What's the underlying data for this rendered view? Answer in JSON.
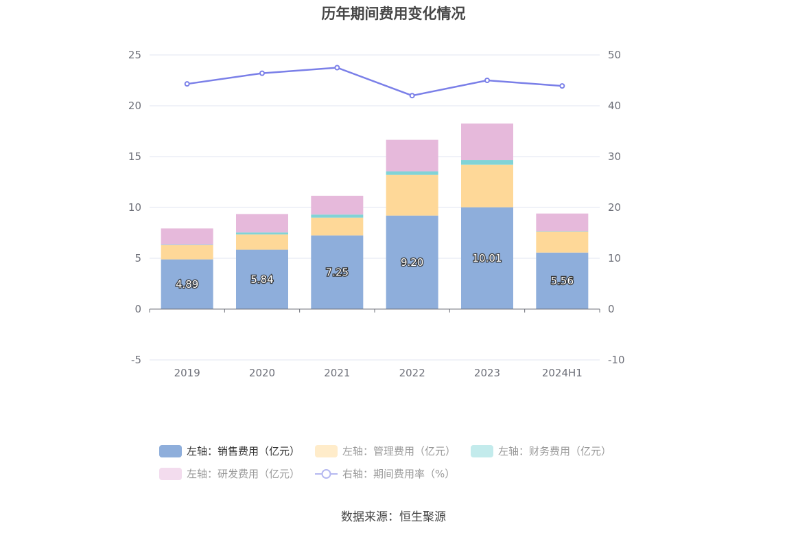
{
  "chart_data": {
    "type": "bar",
    "title": "历年期间费用变化情况",
    "categories": [
      "2019",
      "2020",
      "2021",
      "2022",
      "2023",
      "2024H1"
    ],
    "stacked": true,
    "left_axis": {
      "min": -5,
      "max": 25,
      "ticks": [
        -5,
        0,
        5,
        10,
        15,
        20,
        25
      ]
    },
    "right_axis": {
      "min": -10,
      "max": 50,
      "ticks": [
        -10,
        0,
        10,
        20,
        30,
        40,
        50
      ]
    },
    "grid": true,
    "legend_position": "bottom",
    "series": [
      {
        "name": "左轴：销售费用（亿元）",
        "axis": "left",
        "color": "#8eaedb",
        "values": [
          4.89,
          5.84,
          7.25,
          9.2,
          10.01,
          5.56
        ],
        "labels": [
          "4.89",
          "5.84",
          "7.25",
          "9.20",
          "10.01",
          "5.56"
        ]
      },
      {
        "name": "左轴：管理费用（亿元）",
        "axis": "left",
        "color": "#fed898",
        "values": [
          1.4,
          1.5,
          1.75,
          4.0,
          4.2,
          2.05
        ]
      },
      {
        "name": "左轴：财务费用（亿元）",
        "axis": "left",
        "color": "#81d3d6",
        "values": [
          0.05,
          0.2,
          0.3,
          0.35,
          0.45,
          0.05
        ]
      },
      {
        "name": "左轴：研发费用（亿元）",
        "axis": "left",
        "color": "#e6b9db",
        "values": [
          1.6,
          1.8,
          1.85,
          3.1,
          3.6,
          1.74
        ]
      },
      {
        "name": "右轴：期间费用率（%）",
        "axis": "right",
        "type": "line",
        "color": "#7a7fe8",
        "values": [
          44.3,
          46.4,
          47.5,
          42.0,
          45.0,
          43.9
        ]
      }
    ]
  },
  "source": "数据来源：恒生聚源"
}
